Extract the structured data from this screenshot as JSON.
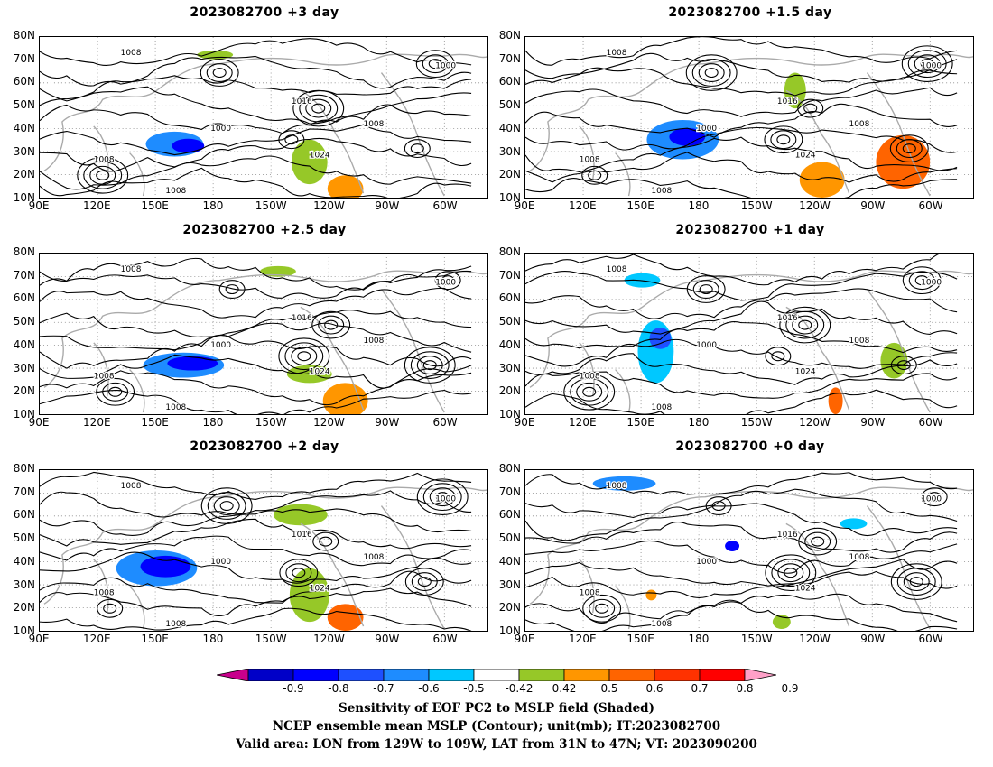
{
  "panels": [
    {
      "title": "2023082700  +3 day"
    },
    {
      "title": "2023082700  +1.5 day"
    },
    {
      "title": "2023082700  +2.5 day"
    },
    {
      "title": "2023082700  +1 day"
    },
    {
      "title": "2023082700  +2 day"
    },
    {
      "title": "2023082700  +0 day"
    }
  ],
  "axes": {
    "lat_labels": [
      "80N",
      "70N",
      "60N",
      "50N",
      "40N",
      "30N",
      "20N",
      "10N"
    ],
    "lon_labels": [
      "90E",
      "120E",
      "150E",
      "180",
      "150W",
      "120W",
      "90W",
      "60W"
    ]
  },
  "contour_labels": [
    "1000",
    "1008",
    "1016",
    "1024"
  ],
  "colorbar": {
    "colors": [
      "#c8008c",
      "#0000c8",
      "#0000ff",
      "#1e50ff",
      "#1e8cff",
      "#00c8ff",
      "#ffffff",
      "#96c828",
      "#ff9600",
      "#ff6400",
      "#ff3200",
      "#ff0000",
      "#ffa0c8"
    ],
    "labels": [
      "-0.9",
      "-0.8",
      "-0.7",
      "-0.6",
      "-0.5",
      "-0.42",
      "0.42",
      "0.5",
      "0.6",
      "0.7",
      "0.8",
      "0.9"
    ]
  },
  "caption": {
    "line1": "Sensitivity of EOF PC2 to MSLP field (Shaded)",
    "line2": "NCEP ensemble mean MSLP (Contour); unit(mb); IT:2023082700",
    "line3": "Valid area: LON from 129W to 109W, LAT from 31N to 47N; VT: 2023090200"
  }
}
